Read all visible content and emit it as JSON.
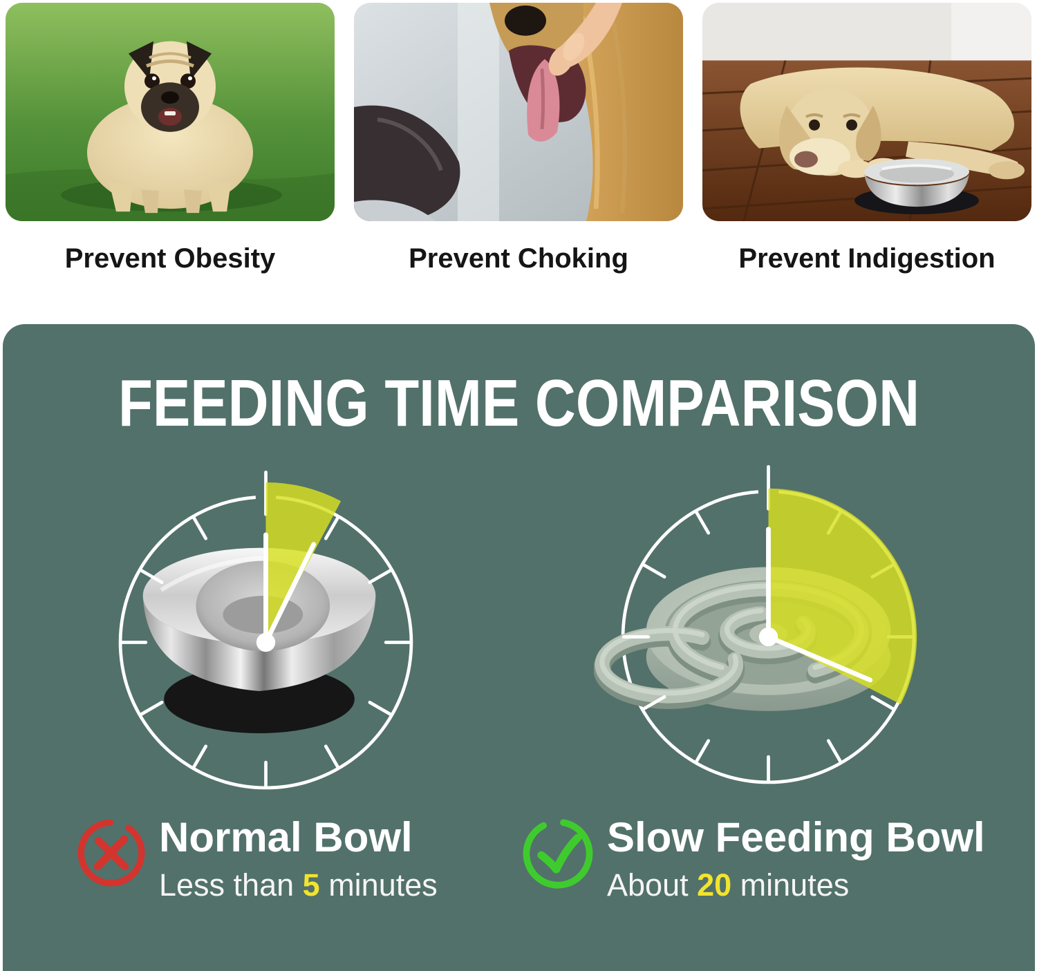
{
  "benefits": {
    "items": [
      {
        "caption": "Prevent Obesity",
        "scene": "obese-pug-on-grass"
      },
      {
        "caption": "Prevent Choking",
        "scene": "hand-checking-dog-mouth"
      },
      {
        "caption": "Prevent Indigestion",
        "scene": "labrador-lying-beside-steel-bowl"
      }
    ]
  },
  "comparison": {
    "title": "FEEDING TIME COMPARISON",
    "colors": {
      "panel_bg": "#52716a",
      "clock_stroke": "#ffffff",
      "wedge_fill": "#d8e020",
      "wedge_opacity": 0.82,
      "highlight_number": "#f2e42e",
      "cross_red": "#d3342e",
      "check_green": "#3fcb2e"
    },
    "left_clock": {
      "bowl": "stainless-steel-bowl",
      "wedge_deg": 28,
      "wedge_r": 220,
      "hand_deg": 26,
      "hand_len": 150
    },
    "right_clock": {
      "bowl": "slow-feeder-bowl",
      "wedge_deg": 117,
      "wedge_r": 204,
      "hand_deg": 113,
      "hand_len": 152
    },
    "left": {
      "verdict": "cross",
      "heading": "Normal Bowl",
      "sub_prefix": "Less than ",
      "sub_value": "5",
      "sub_suffix": " minutes"
    },
    "right": {
      "verdict": "check",
      "heading": "Slow Feeding Bowl",
      "sub_prefix": "About ",
      "sub_value": "20",
      "sub_suffix": " minutes"
    }
  }
}
